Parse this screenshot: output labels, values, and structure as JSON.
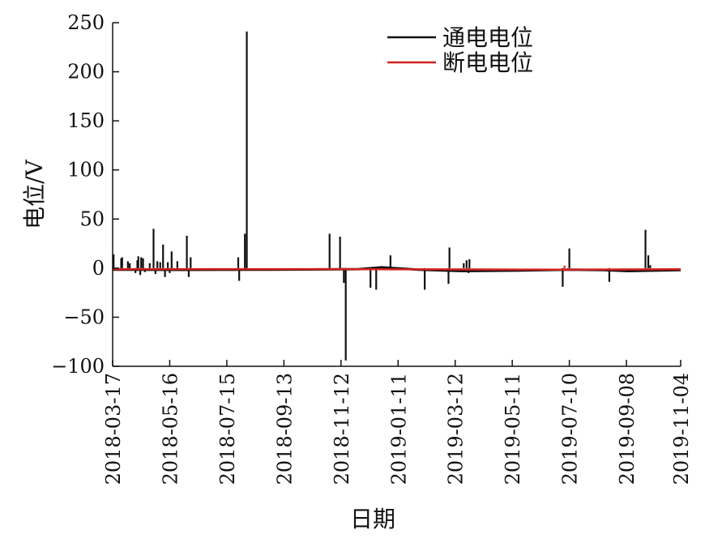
{
  "chart_data": {
    "type": "line",
    "xlabel": "日期",
    "ylabel": "电位/V",
    "ylim": [
      -100,
      250
    ],
    "xlim": [
      "2018-03-17",
      "2019-11-04"
    ],
    "x_ticks": [
      "2018-03-17",
      "2018-05-16",
      "2018-07-15",
      "2018-09-13",
      "2018-11-12",
      "2019-01-11",
      "2019-03-12",
      "2019-05-11",
      "2019-07-10",
      "2019-09-08",
      "2019-11-04"
    ],
    "y_ticks": [
      250,
      200,
      150,
      100,
      50,
      0,
      -50,
      -100
    ],
    "y_tick_labels": [
      "250",
      "200",
      "150",
      "100",
      "50",
      "0",
      "−50",
      "−100"
    ],
    "grid": false,
    "legend": {
      "position": "top-right"
    },
    "colors": {
      "on": "#111111",
      "off": "#d42020"
    },
    "series": [
      {
        "name": "通电电位",
        "color": "#111111",
        "baseline": [
          [
            "2018-03-17",
            -1.5
          ],
          [
            "2018-06-01",
            -1.8
          ],
          [
            "2018-09-01",
            -1.5
          ],
          [
            "2018-12-01",
            -1.0
          ],
          [
            "2018-12-25",
            0.8
          ],
          [
            "2019-01-15",
            -0.5
          ],
          [
            "2019-02-01",
            -1.5
          ],
          [
            "2019-03-20",
            -3.0
          ],
          [
            "2019-05-15",
            -2.5
          ],
          [
            "2019-07-10",
            -1.5
          ],
          [
            "2019-08-15",
            -2.0
          ],
          [
            "2019-09-10",
            -3.0
          ],
          [
            "2019-11-04",
            -2.0
          ]
        ],
        "spikes": [
          [
            "2018-03-18",
            14
          ],
          [
            "2018-03-26",
            10
          ],
          [
            "2018-03-27",
            11
          ],
          [
            "2018-04-02",
            7
          ],
          [
            "2018-04-04",
            5
          ],
          [
            "2018-04-10",
            -5
          ],
          [
            "2018-04-12",
            8
          ],
          [
            "2018-04-13",
            12
          ],
          [
            "2018-04-15",
            -7
          ],
          [
            "2018-04-16",
            11
          ],
          [
            "2018-04-18",
            10
          ],
          [
            "2018-04-20",
            -4
          ],
          [
            "2018-04-25",
            5
          ],
          [
            "2018-04-29",
            40
          ],
          [
            "2018-05-01",
            -6
          ],
          [
            "2018-05-03",
            7
          ],
          [
            "2018-05-06",
            6
          ],
          [
            "2018-05-09",
            24
          ],
          [
            "2018-05-11",
            -9
          ],
          [
            "2018-05-14",
            6
          ],
          [
            "2018-05-16",
            -5
          ],
          [
            "2018-05-18",
            17
          ],
          [
            "2018-05-20",
            -3
          ],
          [
            "2018-05-24",
            7
          ],
          [
            "2018-06-03",
            33
          ],
          [
            "2018-06-05",
            -9
          ],
          [
            "2018-06-07",
            11
          ],
          [
            "2018-07-27",
            11
          ],
          [
            "2018-07-28",
            -13
          ],
          [
            "2018-08-03",
            35
          ],
          [
            "2018-08-05",
            241
          ],
          [
            "2018-10-31",
            35
          ],
          [
            "2018-11-11",
            32
          ],
          [
            "2018-11-15",
            -15
          ],
          [
            "2018-11-17",
            -94
          ],
          [
            "2018-12-13",
            -20
          ],
          [
            "2018-12-19",
            -22
          ],
          [
            "2019-01-03",
            13
          ],
          [
            "2019-02-08",
            -22
          ],
          [
            "2019-03-05",
            -16
          ],
          [
            "2019-03-06",
            21
          ],
          [
            "2019-03-21",
            5
          ],
          [
            "2019-03-24",
            8
          ],
          [
            "2019-03-26",
            -5
          ],
          [
            "2019-03-27",
            9
          ],
          [
            "2019-07-03",
            -19
          ],
          [
            "2019-07-10",
            20
          ],
          [
            "2019-08-21",
            -14
          ],
          [
            "2019-09-28",
            39
          ],
          [
            "2019-10-01",
            13
          ],
          [
            "2019-10-03",
            3
          ]
        ]
      },
      {
        "name": "断电电位",
        "color": "#d42020",
        "baseline": [
          [
            "2018-03-17",
            -1.2
          ],
          [
            "2018-07-01",
            -1.0
          ],
          [
            "2018-11-01",
            -1.0
          ],
          [
            "2019-03-01",
            -1.3
          ],
          [
            "2019-07-01",
            -1.5
          ],
          [
            "2019-11-04",
            -1.2
          ]
        ],
        "spikes": [
          [
            "2018-04-10",
            -2
          ],
          [
            "2018-05-06",
            -2
          ],
          [
            "2019-07-05",
            2.5
          ],
          [
            "2019-07-08",
            -3
          ],
          [
            "2019-08-21",
            -2
          ],
          [
            "2019-09-29",
            -1.5
          ]
        ]
      }
    ]
  }
}
